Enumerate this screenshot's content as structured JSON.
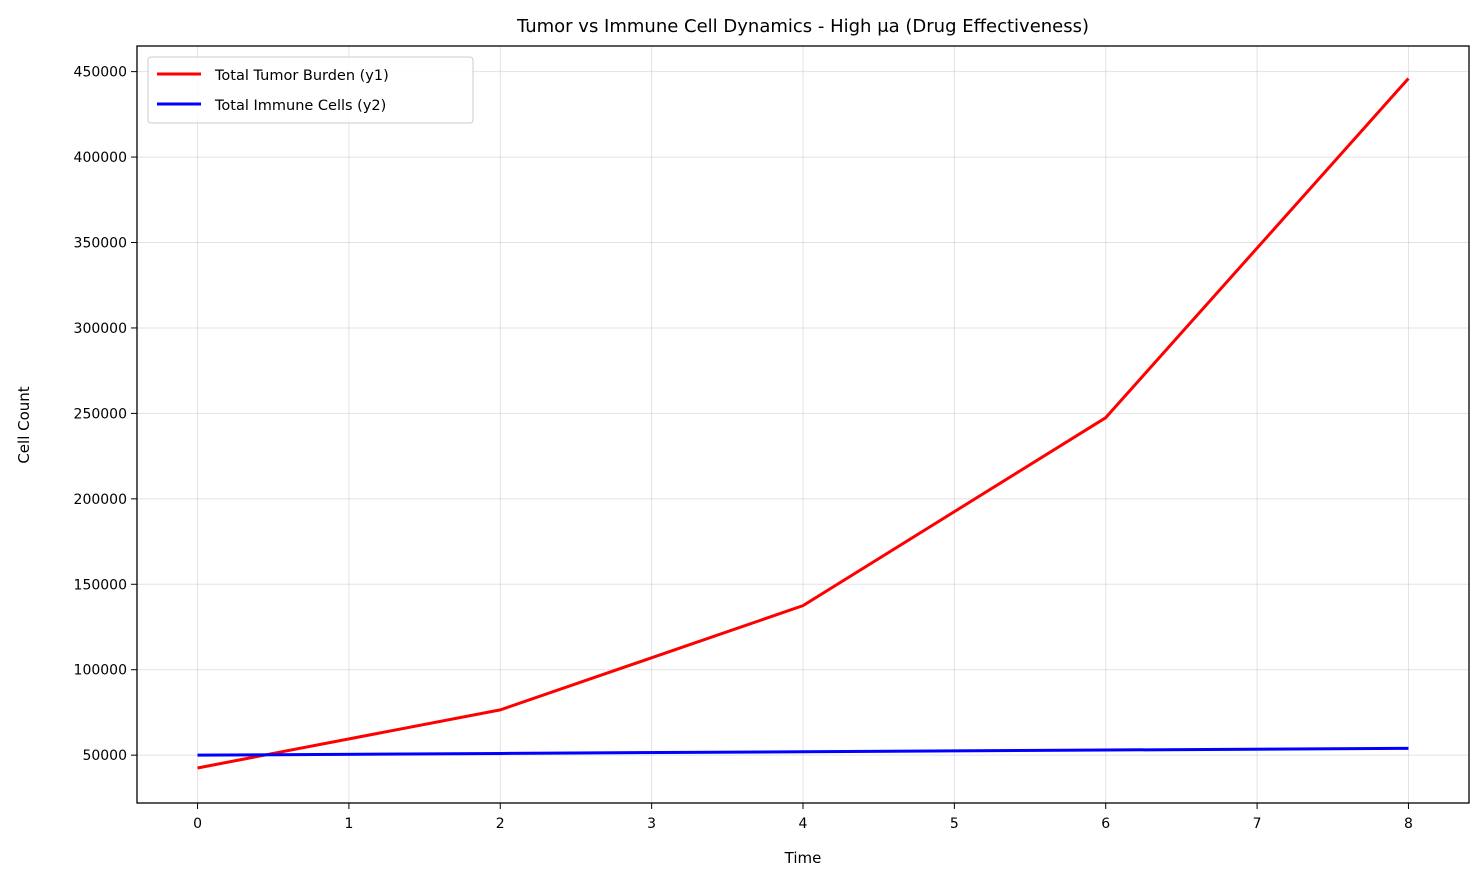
{
  "chart_data": {
    "type": "line",
    "title": "Tumor vs Immune Cell Dynamics - High μa (Drug Effectiveness)",
    "xlabel": "Time",
    "ylabel": "Cell Count",
    "xlim": [
      -0.4,
      8.4
    ],
    "ylim": [
      22000,
      465000
    ],
    "x_ticks": [
      0,
      1,
      2,
      3,
      4,
      5,
      6,
      7,
      8
    ],
    "x_tick_labels": [
      "0",
      "1",
      "2",
      "3",
      "4",
      "5",
      "6",
      "7",
      "8"
    ],
    "y_ticks": [
      50000,
      100000,
      150000,
      200000,
      250000,
      300000,
      350000,
      400000,
      450000
    ],
    "y_tick_labels": [
      "50000",
      "100000",
      "150000",
      "200000",
      "250000",
      "300000",
      "350000",
      "400000",
      "450000"
    ],
    "grid": true,
    "legend_position": "top-left",
    "x": [
      0,
      2,
      4,
      6,
      8
    ],
    "series": [
      {
        "name": "Total Tumor Burden (y1)",
        "color": "#ff0000",
        "values": [
          42500,
          76500,
          137500,
          247500,
          446000
        ]
      },
      {
        "name": "Total Immune Cells (y2)",
        "color": "#0000ff",
        "values": [
          50000,
          51000,
          52000,
          53000,
          54000
        ]
      }
    ]
  }
}
